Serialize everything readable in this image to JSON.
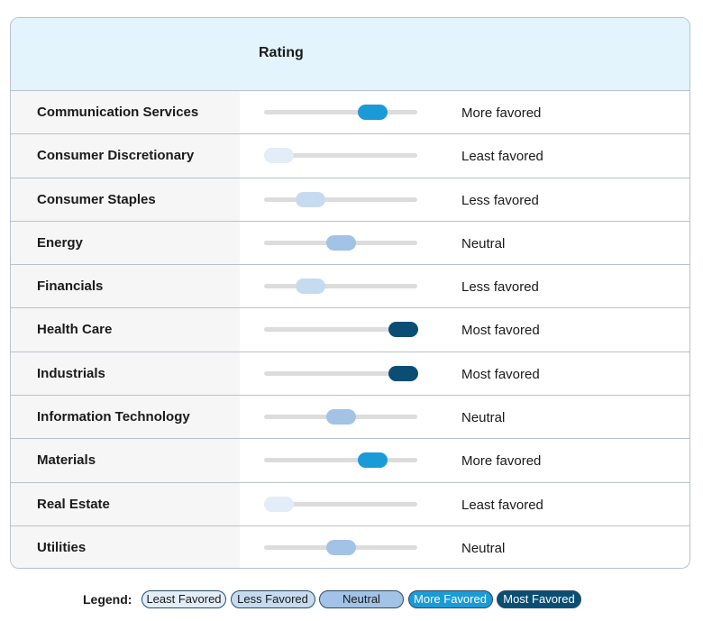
{
  "header": {
    "title": "Rating"
  },
  "rows": [
    {
      "sector": "Communication Services",
      "rating": "More favored"
    },
    {
      "sector": "Consumer Discretionary",
      "rating": "Least favored"
    },
    {
      "sector": "Consumer Staples",
      "rating": "Less favored"
    },
    {
      "sector": "Energy",
      "rating": "Neutral"
    },
    {
      "sector": "Financials",
      "rating": "Less favored"
    },
    {
      "sector": "Health Care",
      "rating": "Most favored"
    },
    {
      "sector": "Industrials",
      "rating": "Most favored"
    },
    {
      "sector": "Information Technology",
      "rating": "Neutral"
    },
    {
      "sector": "Materials",
      "rating": "More favored"
    },
    {
      "sector": "Real Estate",
      "rating": "Least favored"
    },
    {
      "sector": "Utilities",
      "rating": "Neutral"
    }
  ],
  "legend": {
    "label": "Legend:",
    "items": [
      {
        "label": "Least Favored",
        "color": "#e2edf7",
        "text_color": "#1a1a1a"
      },
      {
        "label": "Less Favored",
        "color": "#c6dbef",
        "text_color": "#1a1a1a"
      },
      {
        "label": "Neutral",
        "color": "#a2c2e6",
        "text_color": "#1a1a1a"
      },
      {
        "label": "More Favored",
        "color": "#1a9bd7",
        "text_color": "#ffffff"
      },
      {
        "label": "Most Favored",
        "color": "#0b4e74",
        "text_color": "#ffffff"
      }
    ]
  }
}
